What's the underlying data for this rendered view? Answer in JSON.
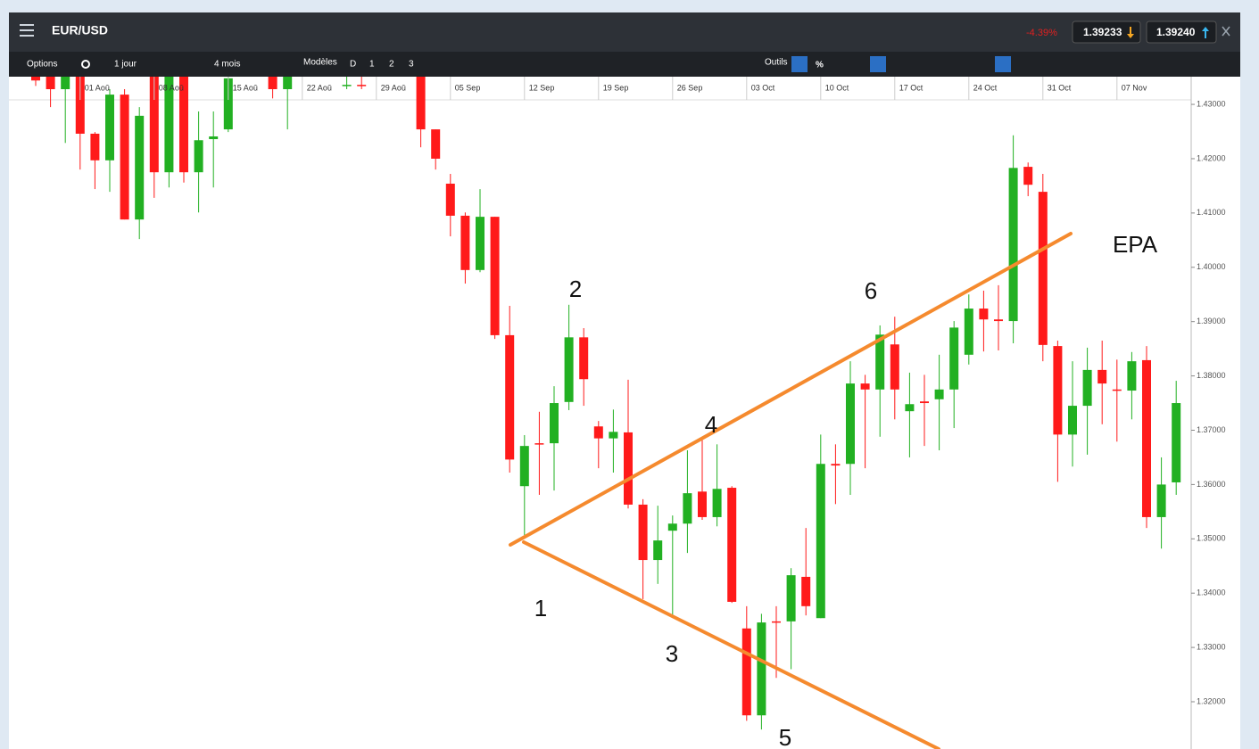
{
  "header": {
    "symbol": "EUR/USD",
    "change": "-4.39%",
    "bid": "1.39233",
    "ask": "1.39240"
  },
  "toolbar": {
    "options": "Options",
    "period": "1 jour",
    "range": "4 mois",
    "templates": "Modèles",
    "template_buttons": [
      "D",
      "1",
      "2",
      "3"
    ],
    "tools": "Outils",
    "percent": "%"
  },
  "chart_data": {
    "type": "candlestick",
    "categories": [
      null,
      null,
      null,
      "01 Aoû",
      null,
      null,
      null,
      null,
      "08 Aoû",
      null,
      null,
      null,
      null,
      "15 Aoû",
      null,
      null,
      null,
      null,
      "22 Aoû",
      null,
      null,
      null,
      null,
      "29 Aoû",
      null,
      null,
      null,
      null,
      "05 Sep",
      null,
      null,
      null,
      null,
      "12 Sep",
      null,
      null,
      null,
      null,
      "19 Sep",
      null,
      null,
      null,
      null,
      "26 Sep",
      null,
      null,
      null,
      null,
      "03 Oct",
      null,
      null,
      null,
      null,
      "10 Oct",
      null,
      null,
      null,
      null,
      "17 Oct",
      null,
      null,
      null,
      null,
      "24 Oct",
      null,
      null,
      null,
      null,
      "31 Oct",
      null,
      null,
      null,
      null,
      "07 Nov",
      null,
      null,
      null,
      null
    ],
    "open": [
      1.4351,
      1.4351,
      1.4328,
      1.4351,
      1.4246,
      1.4197,
      1.4318,
      1.4088,
      1.4351,
      1.4175,
      1.4351,
      1.4175,
      1.4236,
      1.4254,
      null,
      null,
      1.4351,
      1.4328,
      null,
      null,
      null,
      1.4335,
      1.4336,
      null,
      null,
      null,
      1.4351,
      1.4254,
      1.4154,
      1.4095,
      1.3995,
      1.4093,
      1.3875,
      1.3597,
      1.3676,
      1.3676,
      1.3752,
      1.3871,
      1.3707,
      1.3685,
      1.3696,
      1.3563,
      1.3461,
      1.3515,
      1.3528,
      1.3587,
      1.354,
      1.3594,
      1.3335,
      1.3175,
      1.3348,
      1.3348,
      1.343,
      1.3354,
      1.3638,
      1.3638,
      1.3786,
      1.3775,
      1.3858,
      1.3735,
      1.3753,
      1.3757,
      1.3775,
      1.3839,
      1.3924,
      1.3904,
      1.3901,
      1.4185,
      1.4139,
      1.3855,
      1.3692,
      1.3745,
      1.3811,
      1.3775,
      1.3773,
      1.3829,
      1.354,
      1.3604
    ],
    "high": [
      1.4354,
      1.4354,
      1.4354,
      1.4354,
      1.4249,
      1.4328,
      1.4328,
      1.4295,
      1.4354,
      1.4354,
      1.4354,
      1.4287,
      1.4287,
      1.4354,
      null,
      null,
      1.4354,
      1.4354,
      null,
      null,
      null,
      1.4354,
      1.4354,
      null,
      null,
      null,
      1.4354,
      1.4254,
      1.4172,
      1.4101,
      1.4144,
      1.4093,
      1.3929,
      1.3691,
      1.3734,
      1.3781,
      1.3931,
      1.3888,
      1.3717,
      1.3738,
      1.3793,
      1.3573,
      1.3561,
      1.3543,
      1.3663,
      1.3688,
      1.3674,
      1.3597,
      1.3376,
      1.3362,
      1.3376,
      1.3446,
      1.352,
      1.3692,
      1.3674,
      1.3827,
      1.3802,
      1.3893,
      1.3909,
      1.3806,
      1.3802,
      1.3839,
      1.3901,
      1.395,
      1.3957,
      1.3967,
      1.4243,
      1.4193,
      1.4172,
      1.3865,
      1.3827,
      1.3852,
      1.3865,
      1.383,
      1.3844,
      1.3855,
      1.365,
      1.3791
    ],
    "low": [
      1.4334,
      1.4295,
      1.4229,
      1.418,
      1.4144,
      1.4139,
      1.4088,
      1.4052,
      1.4128,
      1.4147,
      1.4156,
      1.4101,
      1.4147,
      1.4249,
      null,
      null,
      1.4311,
      1.4254,
      null,
      null,
      null,
      1.4328,
      1.4328,
      null,
      null,
      null,
      1.4221,
      1.418,
      1.4057,
      1.397,
      1.3991,
      1.3868,
      1.3622,
      1.3507,
      1.3581,
      1.3589,
      1.3737,
      1.3745,
      1.363,
      1.3622,
      1.3556,
      1.3389,
      1.3417,
      1.3359,
      1.3474,
      1.3535,
      1.3523,
      1.3382,
      1.3165,
      1.3149,
      1.3244,
      1.326,
      1.3359,
      1.3354,
      1.3564,
      1.3581,
      1.363,
      1.3688,
      1.372,
      1.365,
      1.3671,
      1.3663,
      1.3704,
      1.3821,
      1.3845,
      1.3847,
      1.386,
      1.4131,
      1.3827,
      1.3605,
      1.3633,
      1.3655,
      1.3711,
      1.3679,
      1.372,
      1.352,
      1.3482,
      1.3581
    ],
    "close": [
      1.4344,
      1.4328,
      1.4351,
      1.4246,
      1.4197,
      1.4318,
      1.4088,
      1.4279,
      1.4175,
      1.4351,
      1.4175,
      1.4234,
      1.4241,
      1.4348,
      null,
      null,
      1.4328,
      1.4351,
      null,
      null,
      null,
      1.4336,
      1.4335,
      null,
      null,
      null,
      1.4254,
      1.42,
      1.4095,
      1.3995,
      1.4093,
      1.3875,
      1.3646,
      1.3671,
      1.3674,
      1.375,
      1.3871,
      1.3794,
      1.3685,
      1.3697,
      1.3563,
      1.3461,
      1.3497,
      1.3528,
      1.3584,
      1.354,
      1.3592,
      1.3384,
      1.3175,
      1.3346,
      1.3346,
      1.3433,
      1.3376,
      1.3638,
      1.3635,
      1.3786,
      1.3775,
      1.3876,
      1.3775,
      1.3748,
      1.375,
      1.3775,
      1.3889,
      1.3924,
      1.3904,
      1.3901,
      1.4183,
      1.4152,
      1.3857,
      1.3692,
      1.3745,
      1.3811,
      1.3786,
      1.3773,
      1.3827,
      1.354,
      1.36,
      1.375
    ],
    "up_color": "#22b022",
    "down_color": "#ff1a1a",
    "ylim": [
      1.3113,
      1.4351
    ],
    "yticks": [
      {
        "value": 1.43,
        "label": "1.43000"
      },
      {
        "value": 1.42,
        "label": "1.42000"
      },
      {
        "value": 1.41,
        "label": "1.41000"
      },
      {
        "value": 1.4,
        "label": "1.40000"
      },
      {
        "value": 1.39,
        "label": "1.39000"
      },
      {
        "value": 1.38,
        "label": "1.38000"
      },
      {
        "value": 1.37,
        "label": "1.37000"
      },
      {
        "value": 1.36,
        "label": "1.36000"
      },
      {
        "value": 1.35,
        "label": "1.35000"
      },
      {
        "value": 1.34,
        "label": "1.34000"
      },
      {
        "value": 1.33,
        "label": "1.33000"
      },
      {
        "value": 1.32,
        "label": "1.32000"
      }
    ],
    "annotations": [
      "1",
      "2",
      "3",
      "4",
      "5",
      "6",
      "EPA"
    ]
  }
}
